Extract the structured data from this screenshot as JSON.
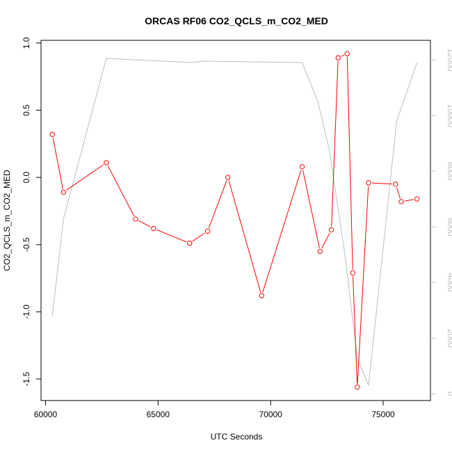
{
  "chart_data": {
    "type": "line",
    "title": "ORCAS RF06 CO2_QCLS_m_CO2_MED",
    "xlabel": "UTC Seconds",
    "ylabel": "CO2_QCLS_m_CO2_MED",
    "xlim": [
      59800,
      77100
    ],
    "ylim": [
      -1.66,
      1.02
    ],
    "y2lim": [
      -240,
      12700
    ],
    "x_ticks": [
      60000,
      65000,
      70000,
      75000
    ],
    "y_ticks": [
      -1.5,
      -1.0,
      -0.5,
      0.0,
      0.5,
      1.0
    ],
    "y2_ticks": [
      0,
      2000,
      4000,
      6000,
      8000,
      10000,
      12000
    ],
    "series": [
      {
        "color": "#ff0000",
        "axis": "left",
        "markers": true,
        "x": [
          60300,
          60800,
          62700,
          64000,
          64800,
          66400,
          67200,
          68100,
          69600,
          71400,
          72200,
          72700,
          73000,
          73400,
          73650,
          73850,
          74350,
          75550,
          75800,
          76500
        ],
        "y": [
          0.32,
          -0.11,
          0.11,
          -0.31,
          -0.38,
          -0.49,
          -0.4,
          0.0,
          -0.88,
          0.08,
          -0.55,
          -0.39,
          0.89,
          0.92,
          -0.71,
          -1.56,
          -0.04,
          -0.05,
          -0.18,
          -0.16
        ]
      },
      {
        "color": "#bebebe",
        "axis": "right",
        "markers": false,
        "x": [
          60300,
          60800,
          62700,
          66500,
          67000,
          71400,
          72100,
          72600,
          73300,
          73850,
          74350,
          75600,
          76500
        ],
        "y": [
          2800,
          6300,
          12050,
          11900,
          11950,
          11900,
          10500,
          8800,
          5000,
          1300,
          300,
          9800,
          11900
        ]
      }
    ]
  }
}
